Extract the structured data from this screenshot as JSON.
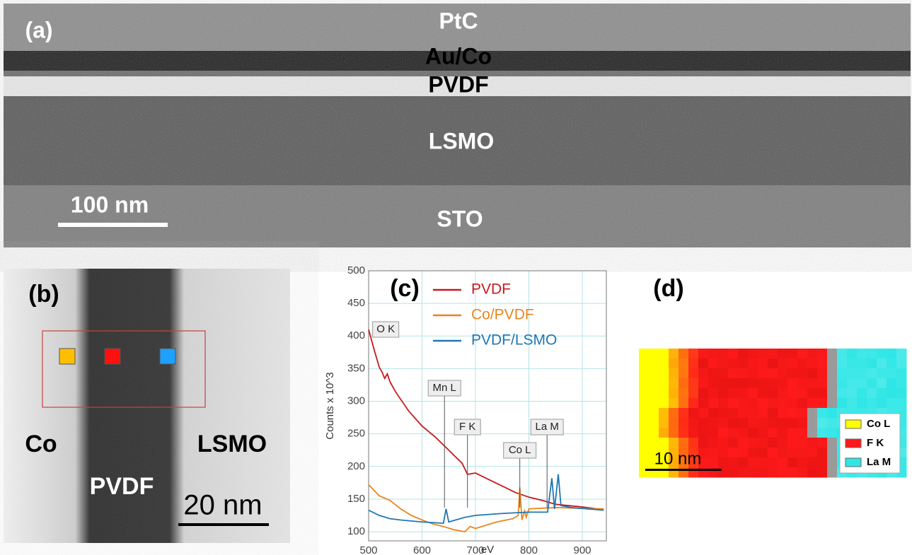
{
  "panel_a": {
    "label": "(a)",
    "layers": [
      "PtC",
      "Au/Co",
      "PVDF",
      "LSMO",
      "STO"
    ],
    "scale_bar": "100 nm"
  },
  "panel_b": {
    "label": "(b)",
    "regions": [
      "Co",
      "PVDF",
      "LSMO"
    ],
    "scale_bar": "20 nm"
  },
  "chart_data": {
    "type": "line",
    "label": "(c)",
    "x_label": "eV",
    "y_label": "Counts x 10^3",
    "xlim": [
      500,
      945
    ],
    "ylim": [
      86,
      500
    ],
    "xticks": [
      500,
      600,
      700,
      800,
      900
    ],
    "yticks": [
      100,
      150,
      200,
      250,
      300,
      350,
      400,
      450,
      500
    ],
    "grid": true,
    "series": [
      {
        "name": "PVDF",
        "color": "#c8191e",
        "x": [
          500,
          510,
          520,
          525,
          530,
          535,
          540,
          550,
          575,
          600,
          625,
          650,
          675,
          685,
          700,
          725,
          750,
          775,
          800,
          825,
          850,
          875,
          900,
          940
        ],
        "values": [
          410,
          380,
          352,
          345,
          335,
          342,
          330,
          315,
          285,
          262,
          245,
          225,
          205,
          188,
          190,
          180,
          170,
          160,
          153,
          148,
          142,
          140,
          138,
          134
        ]
      },
      {
        "name": "Co/PVDF",
        "color": "#e8861e",
        "x": [
          500,
          520,
          540,
          560,
          580,
          600,
          620,
          640,
          660,
          680,
          690,
          700,
          720,
          740,
          770,
          780,
          783,
          787,
          792,
          795,
          800,
          850,
          940
        ],
        "values": [
          172,
          155,
          148,
          135,
          125,
          118,
          112,
          108,
          103,
          100,
          108,
          105,
          110,
          115,
          120,
          125,
          168,
          118,
          132,
          122,
          135,
          137,
          135
        ]
      },
      {
        "name": "PVDF/LSMO",
        "color": "#1f77b4",
        "x": [
          500,
          520,
          540,
          560,
          600,
          640,
          645,
          650,
          680,
          700,
          750,
          800,
          835,
          843,
          848,
          855,
          860,
          880,
          940
        ],
        "values": [
          133,
          125,
          120,
          118,
          115,
          113,
          135,
          115,
          122,
          125,
          128,
          130,
          130,
          182,
          135,
          188,
          140,
          137,
          133
        ]
      }
    ],
    "annotations": [
      {
        "text": "O K",
        "x": 532
      },
      {
        "text": "Mn L",
        "x": 642
      },
      {
        "text": "F K",
        "x": 685
      },
      {
        "text": "Co L",
        "x": 783
      },
      {
        "text": "La M",
        "x": 834
      }
    ]
  },
  "panel_d": {
    "label": "(d)",
    "scale_bar": "10 nm",
    "legend": [
      {
        "name": "Co L",
        "color": "#ffff00"
      },
      {
        "name": "F K",
        "color": "#ff1a1a"
      },
      {
        "name": "La M",
        "color": "#2ee6e6"
      }
    ]
  }
}
